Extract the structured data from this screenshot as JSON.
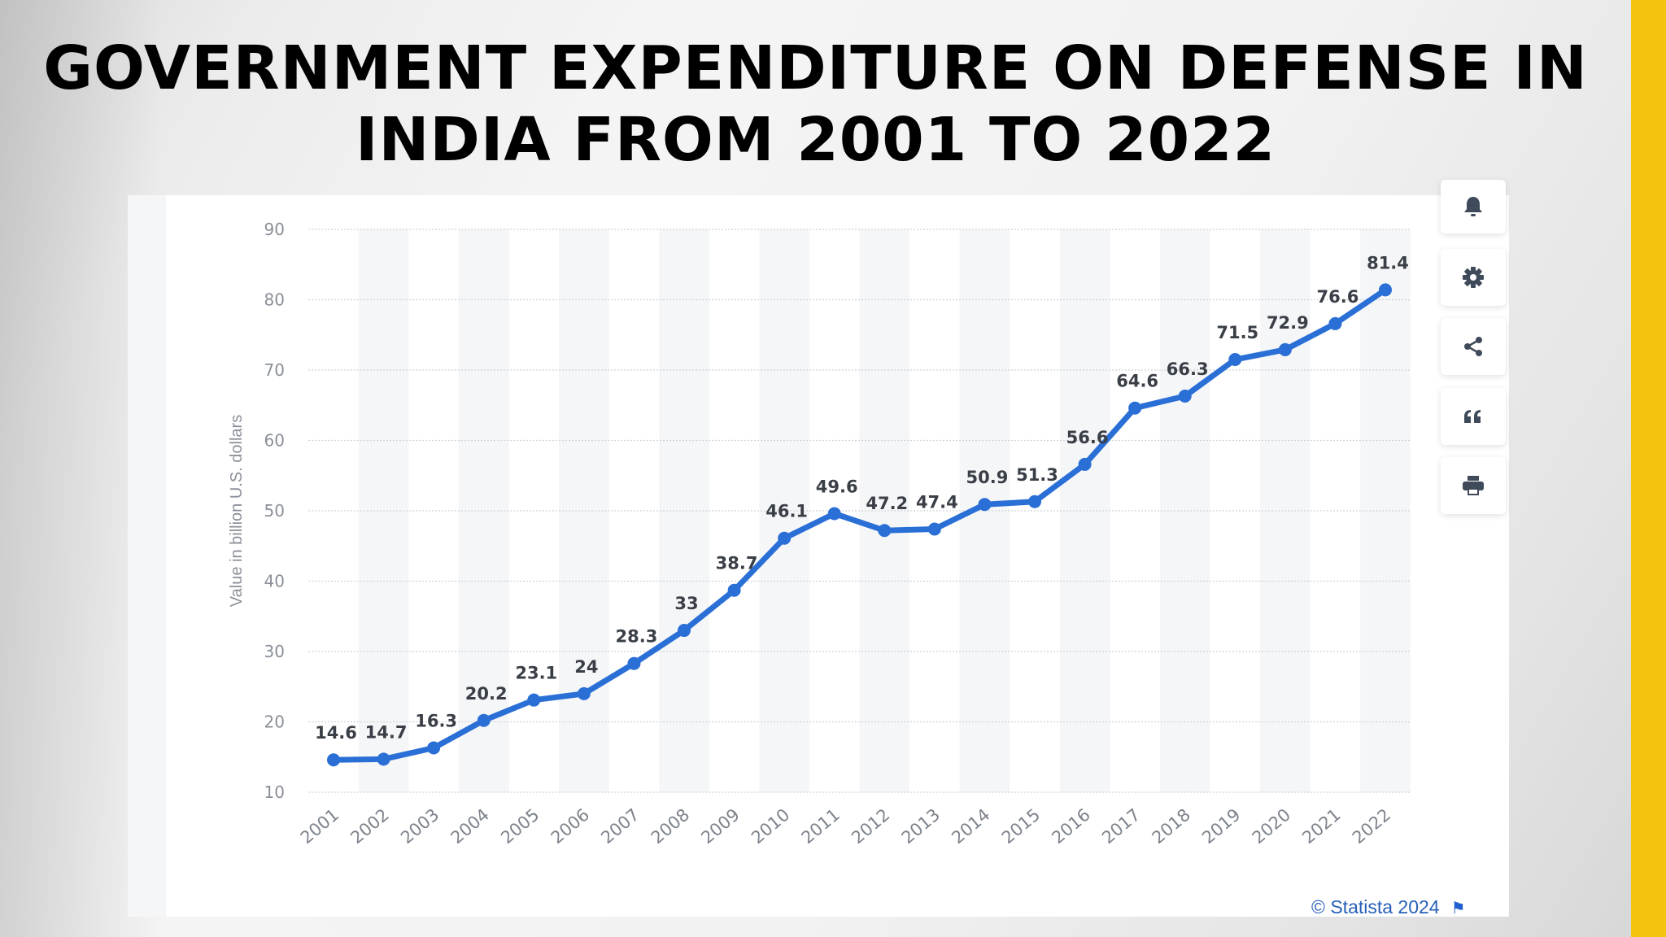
{
  "title_lines": [
    "GOVERNMENT EXPENDITURE ON DEFENSE IN",
    "INDIA FROM 2001 TO 2022"
  ],
  "footer": {
    "copyright": "© Statista 2024",
    "flag_icon": "flag-icon"
  },
  "toolbar": [
    "bell-icon",
    "gear-icon",
    "share-icon",
    "quote-icon",
    "print-icon"
  ],
  "colors": {
    "line": "#2a6fd6",
    "accent_bar": "#F2C40F"
  },
  "chart_data": {
    "type": "line",
    "title": "",
    "xlabel": "",
    "ylabel": "Value in billion U.S. dollars",
    "categories": [
      "2001",
      "2002",
      "2003",
      "2004",
      "2005",
      "2006",
      "2007",
      "2008",
      "2009",
      "2010",
      "2011",
      "2012",
      "2013",
      "2014",
      "2015",
      "2016",
      "2017",
      "2018",
      "2019",
      "2020",
      "2021",
      "2022"
    ],
    "values": [
      14.6,
      14.7,
      16.3,
      20.2,
      23.1,
      24,
      28.3,
      33,
      38.7,
      46.1,
      49.6,
      47.2,
      47.4,
      50.9,
      51.3,
      56.6,
      64.6,
      66.3,
      71.5,
      72.9,
      76.6,
      81.4
    ],
    "data_labels": [
      "14.6",
      "14.7",
      "16.3",
      "20.2",
      "23.1",
      "24",
      "28.3",
      "33",
      "38.7",
      "46.1",
      "49.6",
      "47.2",
      "47.4",
      "50.9",
      "51.3",
      "56.6",
      "64.6",
      "66.3",
      "71.5",
      "72.9",
      "76.6",
      "81.4"
    ],
    "yticks": [
      10,
      20,
      30,
      40,
      50,
      60,
      70,
      80,
      90
    ],
    "ylim": [
      10,
      90
    ],
    "grid": true,
    "legend": "none"
  }
}
